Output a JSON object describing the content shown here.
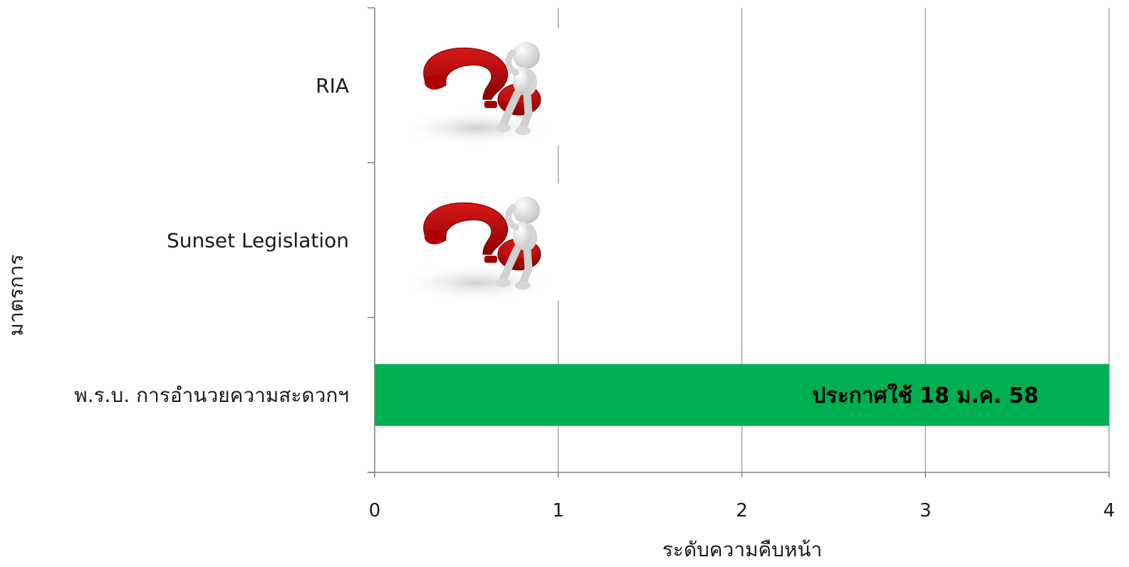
{
  "chart_data": {
    "type": "bar",
    "orientation": "horizontal",
    "categories": [
      "RIA",
      "Sunset Legislation",
      "พ.ร.บ. การอำนวยความสะดวกฯ"
    ],
    "values": [
      null,
      null,
      4
    ],
    "xlim": [
      0,
      4
    ],
    "x_ticks": [
      "0",
      "1",
      "2",
      "3",
      "4"
    ],
    "xlabel": "ระดับความคืบหน้า",
    "ylabel": "มาตรการ",
    "grid": "vertical",
    "bar_color": "#00b050",
    "data_labels": [
      "",
      "",
      "ประกาศใช้ 18 ม.ค. 58"
    ],
    "category_markers": [
      {
        "category": "RIA",
        "icon": "question-mark-thinking-figure-icon"
      },
      {
        "category": "Sunset Legislation",
        "icon": "question-mark-thinking-figure-icon"
      }
    ]
  }
}
